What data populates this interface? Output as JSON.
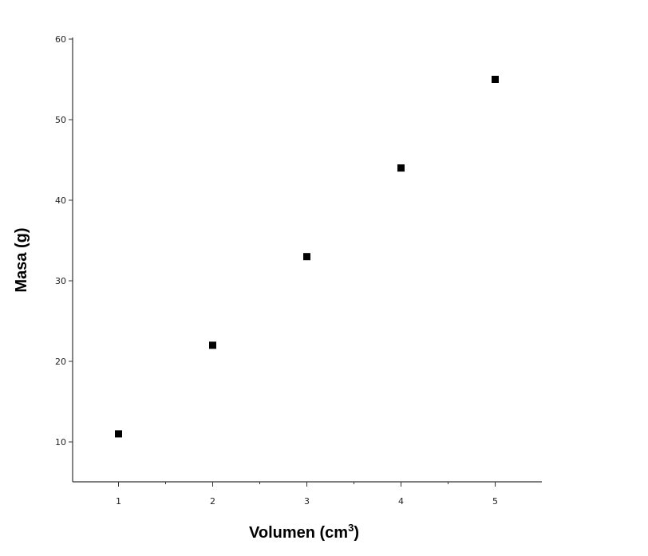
{
  "chart_data": {
    "type": "scatter",
    "xlabel": "Volumen (cm",
    "xlabel_sup": "3",
    "xlabel_close": ")",
    "ylabel": "Masa (g)",
    "x": [
      1,
      2,
      3,
      4,
      5
    ],
    "y": [
      11,
      22,
      33,
      44,
      55
    ],
    "xlim": [
      0.5,
      5.5
    ],
    "ylim": [
      5,
      60
    ],
    "xticks": [
      1,
      2,
      3,
      4,
      5
    ],
    "yticks": [
      10,
      20,
      30,
      40,
      50,
      60
    ],
    "grid": false,
    "marker": "square",
    "marker_color": "#000000"
  }
}
